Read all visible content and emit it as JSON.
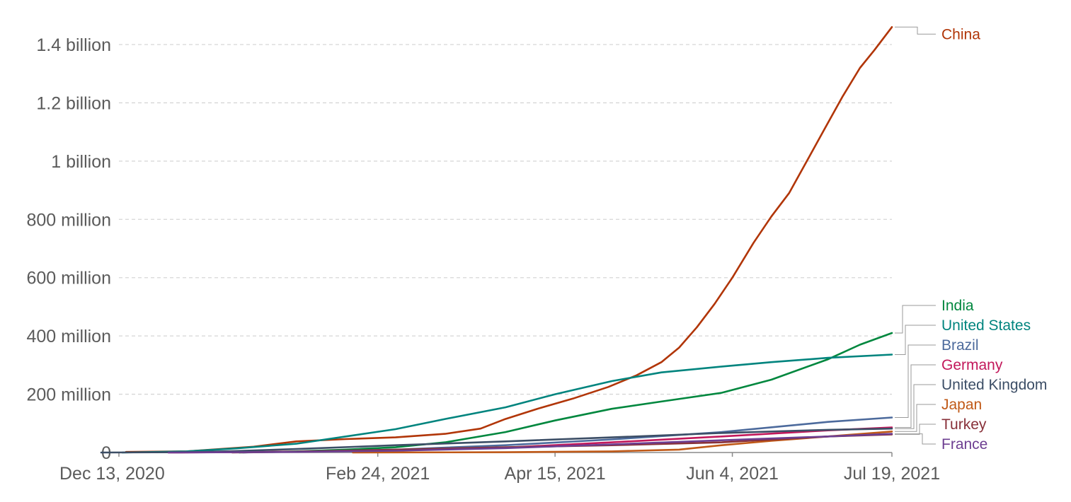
{
  "chart_data": {
    "type": "line",
    "title": "",
    "xlabel": "",
    "ylabel": "",
    "x_start": "2020-12-13",
    "x_end": "2021-07-19",
    "xlim": [
      "2020-12-13",
      "2021-07-19"
    ],
    "ylim": [
      0,
      1400000000
    ],
    "grid": true,
    "legend": "right",
    "x_ticks": [
      {
        "date": "2020-12-13",
        "label": "Dec 13, 2020"
      },
      {
        "date": "2021-02-24",
        "label": "Feb 24, 2021"
      },
      {
        "date": "2021-04-15",
        "label": "Apr 15, 2021"
      },
      {
        "date": "2021-06-04",
        "label": "Jun 4, 2021"
      },
      {
        "date": "2021-07-19",
        "label": "Jul 19, 2021"
      }
    ],
    "y_ticks": [
      {
        "value": 0,
        "label": "0"
      },
      {
        "value": 200000000,
        "label": "200 million"
      },
      {
        "value": 400000000,
        "label": "400 million"
      },
      {
        "value": 600000000,
        "label": "600 million"
      },
      {
        "value": 800000000,
        "label": "800 million"
      },
      {
        "value": 1000000000,
        "label": "1 billion"
      },
      {
        "value": 1200000000,
        "label": "1.2 billion"
      },
      {
        "value": 1400000000,
        "label": "1.4 billion"
      }
    ],
    "series": [
      {
        "name": "China",
        "color": "#b13507",
        "points": [
          [
            "2020-12-15",
            2000000
          ],
          [
            "2021-01-01",
            4000000
          ],
          [
            "2021-01-20",
            20000000
          ],
          [
            "2021-02-01",
            38000000
          ],
          [
            "2021-02-15",
            46000000
          ],
          [
            "2021-03-01",
            52000000
          ],
          [
            "2021-03-15",
            64000000
          ],
          [
            "2021-03-25",
            82000000
          ],
          [
            "2021-04-01",
            115000000
          ],
          [
            "2021-04-10",
            150000000
          ],
          [
            "2021-04-20",
            185000000
          ],
          [
            "2021-04-30",
            225000000
          ],
          [
            "2021-05-08",
            265000000
          ],
          [
            "2021-05-15",
            310000000
          ],
          [
            "2021-05-20",
            360000000
          ],
          [
            "2021-05-25",
            430000000
          ],
          [
            "2021-05-30",
            510000000
          ],
          [
            "2021-06-04",
            600000000
          ],
          [
            "2021-06-10",
            720000000
          ],
          [
            "2021-06-15",
            810000000
          ],
          [
            "2021-06-20",
            890000000
          ],
          [
            "2021-06-25",
            1000000000
          ],
          [
            "2021-06-30",
            1110000000
          ],
          [
            "2021-07-05",
            1220000000
          ],
          [
            "2021-07-10",
            1320000000
          ],
          [
            "2021-07-14",
            1380000000
          ],
          [
            "2021-07-19",
            1460000000
          ]
        ]
      },
      {
        "name": "India",
        "color": "#00873e",
        "points": [
          [
            "2021-01-16",
            0
          ],
          [
            "2021-02-01",
            4000000
          ],
          [
            "2021-02-15",
            10000000
          ],
          [
            "2021-03-01",
            18000000
          ],
          [
            "2021-03-15",
            35000000
          ],
          [
            "2021-04-01",
            70000000
          ],
          [
            "2021-04-15",
            110000000
          ],
          [
            "2021-05-01",
            150000000
          ],
          [
            "2021-05-15",
            175000000
          ],
          [
            "2021-06-01",
            205000000
          ],
          [
            "2021-06-15",
            250000000
          ],
          [
            "2021-07-01",
            320000000
          ],
          [
            "2021-07-10",
            370000000
          ],
          [
            "2021-07-19",
            410000000
          ]
        ]
      },
      {
        "name": "United States",
        "color": "#00847e",
        "points": [
          [
            "2020-12-14",
            0
          ],
          [
            "2021-01-01",
            4000000
          ],
          [
            "2021-01-15",
            14000000
          ],
          [
            "2021-02-01",
            30000000
          ],
          [
            "2021-02-15",
            55000000
          ],
          [
            "2021-03-01",
            80000000
          ],
          [
            "2021-03-15",
            115000000
          ],
          [
            "2021-04-01",
            155000000
          ],
          [
            "2021-04-15",
            200000000
          ],
          [
            "2021-05-01",
            245000000
          ],
          [
            "2021-05-15",
            275000000
          ],
          [
            "2021-06-01",
            295000000
          ],
          [
            "2021-06-15",
            310000000
          ],
          [
            "2021-07-01",
            325000000
          ],
          [
            "2021-07-19",
            336000000
          ]
        ]
      },
      {
        "name": "Brazil",
        "color": "#4c6a9c",
        "points": [
          [
            "2021-01-17",
            0
          ],
          [
            "2021-02-01",
            3000000
          ],
          [
            "2021-03-01",
            10000000
          ],
          [
            "2021-04-01",
            25000000
          ],
          [
            "2021-05-01",
            45000000
          ],
          [
            "2021-06-01",
            70000000
          ],
          [
            "2021-07-01",
            105000000
          ],
          [
            "2021-07-19",
            120000000
          ]
        ]
      },
      {
        "name": "Germany",
        "color": "#c2185b",
        "points": [
          [
            "2020-12-27",
            0
          ],
          [
            "2021-01-15",
            1500000
          ],
          [
            "2021-02-01",
            3000000
          ],
          [
            "2021-03-01",
            8000000
          ],
          [
            "2021-04-01",
            17000000
          ],
          [
            "2021-05-01",
            35000000
          ],
          [
            "2021-06-01",
            55000000
          ],
          [
            "2021-07-01",
            76000000
          ],
          [
            "2021-07-19",
            86000000
          ]
        ]
      },
      {
        "name": "United Kingdom",
        "color": "#3c4e66",
        "points": [
          [
            "2020-12-08",
            0
          ],
          [
            "2021-01-01",
            1000000
          ],
          [
            "2021-01-15",
            5000000
          ],
          [
            "2021-02-01",
            12000000
          ],
          [
            "2021-03-01",
            25000000
          ],
          [
            "2021-04-01",
            38000000
          ],
          [
            "2021-05-01",
            52000000
          ],
          [
            "2021-06-01",
            67000000
          ],
          [
            "2021-07-01",
            78000000
          ],
          [
            "2021-07-19",
            82000000
          ]
        ]
      },
      {
        "name": "Japan",
        "color": "#c05917",
        "points": [
          [
            "2021-02-17",
            0
          ],
          [
            "2021-04-01",
            1000000
          ],
          [
            "2021-05-01",
            4000000
          ],
          [
            "2021-05-20",
            10000000
          ],
          [
            "2021-06-01",
            25000000
          ],
          [
            "2021-06-15",
            40000000
          ],
          [
            "2021-07-01",
            55000000
          ],
          [
            "2021-07-19",
            72000000
          ]
        ]
      },
      {
        "name": "Turkey",
        "color": "#883039",
        "points": [
          [
            "2021-01-14",
            0
          ],
          [
            "2021-02-01",
            3000000
          ],
          [
            "2021-03-01",
            10000000
          ],
          [
            "2021-04-01",
            18000000
          ],
          [
            "2021-05-01",
            25000000
          ],
          [
            "2021-06-01",
            35000000
          ],
          [
            "2021-07-01",
            55000000
          ],
          [
            "2021-07-19",
            62000000
          ]
        ]
      },
      {
        "name": "France",
        "color": "#6d3e91",
        "points": [
          [
            "2020-12-27",
            0
          ],
          [
            "2021-01-15",
            1000000
          ],
          [
            "2021-02-01",
            2000000
          ],
          [
            "2021-03-01",
            6000000
          ],
          [
            "2021-04-01",
            15000000
          ],
          [
            "2021-05-01",
            28000000
          ],
          [
            "2021-06-01",
            42000000
          ],
          [
            "2021-07-01",
            55000000
          ],
          [
            "2021-07-19",
            64000000
          ]
        ]
      }
    ]
  }
}
